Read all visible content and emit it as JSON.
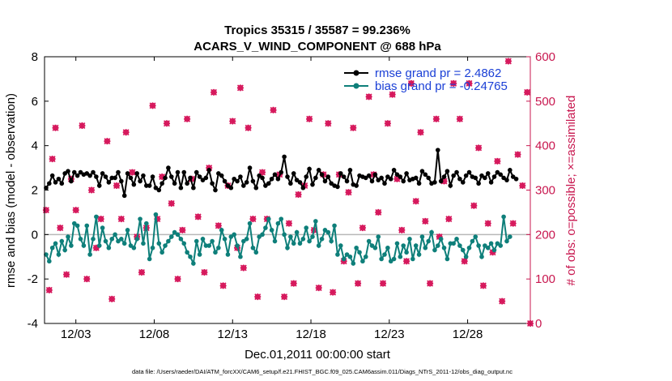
{
  "chart_data": {
    "type": "line",
    "title": "Tropics 35315 / 35587 = 99.236%",
    "subtitle": "ACARS_V_WIND_COMPONENT @ 688 hPa",
    "xlabel": "Dec.01,2011 00:00:00 start",
    "ylabel_left": "rmse and bias (model - observation)",
    "ylabel_right": "# of obs: o=possible; ×=assimilated",
    "x_tick_labels": [
      "12/03",
      "12/08",
      "12/13",
      "12/18",
      "12/23",
      "12/28"
    ],
    "x_tick_days": [
      2,
      7,
      12,
      17,
      22,
      27
    ],
    "xlim_days": [
      0,
      31
    ],
    "ylim_left": [
      -4,
      8
    ],
    "y_ticks_left": [
      "8",
      "6",
      "4",
      "2",
      "0",
      "-2",
      "-4"
    ],
    "ylim_right": [
      0,
      600
    ],
    "y_ticks_right": [
      "600",
      "500",
      "400",
      "300",
      "200",
      "100",
      "0"
    ],
    "series": [
      {
        "name": "rmse",
        "legend": "rmse grand pr = 2.4862",
        "color": "#000000",
        "values": [
          2.1,
          2.3,
          2.65,
          2.35,
          2.5,
          2.3,
          2.75,
          2.85,
          2.4,
          2.8,
          2.65,
          2.8,
          2.7,
          2.75,
          2.65,
          2.8,
          2.6,
          2.2,
          2.75,
          2.6,
          2.35,
          2.55,
          2.55,
          2.8,
          2.4,
          1.75,
          2.75,
          2.55,
          2.25,
          2.75,
          2.4,
          2.65,
          2.2,
          2.2,
          2.6,
          2.1,
          2.0,
          2.3,
          2.55,
          3.0,
          2.6,
          2.3,
          2.8,
          2.1,
          2.8,
          2.3,
          2.55,
          2.1,
          2.8,
          2.6,
          2.45,
          2.55,
          2.9,
          2.3,
          2.0,
          2.75,
          2.65,
          2.4,
          2.2,
          2.1,
          2.5,
          2.4,
          2.6,
          2.2,
          2.35,
          3.0,
          2.4,
          2.1,
          2.65,
          2.55,
          2.2,
          2.3,
          2.5,
          2.7,
          2.5,
          2.8,
          3.5,
          2.6,
          2.3,
          2.75,
          2.45,
          2.35,
          2.1,
          2.6,
          2.95,
          2.25,
          2.55,
          2.9,
          2.7,
          2.4,
          2.6,
          2.3,
          2.2,
          2.15,
          2.75,
          2.6,
          2.4,
          2.9,
          2.25,
          2.2,
          2.65,
          2.6,
          2.55,
          2.65,
          2.4,
          2.7,
          2.45,
          2.55,
          2.3,
          2.6,
          2.5,
          2.9,
          2.7,
          2.6,
          2.4,
          2.75,
          2.45,
          2.5,
          2.55,
          2.3,
          2.85,
          2.7,
          2.55,
          2.3,
          2.35,
          3.8,
          2.4,
          2.6,
          2.85,
          2.2,
          2.65,
          2.8,
          2.5,
          2.35,
          2.65,
          2.8,
          2.6,
          2.55,
          2.3,
          2.65,
          2.55,
          2.75,
          2.35,
          2.6,
          2.8,
          2.7,
          2.55,
          2.45,
          2.9,
          2.6,
          2.5
        ],
        "x_step_days": 0.2
      },
      {
        "name": "bias",
        "legend": "bias grand pr = -0.24765",
        "color": "#0e7f7a",
        "values": [
          -0.9,
          -1.2,
          -0.6,
          -0.4,
          -0.9,
          -0.3,
          -0.7,
          -0.1,
          -0.5,
          0.5,
          0.4,
          -0.2,
          -0.5,
          0.4,
          -0.9,
          -0.2,
          0.8,
          -0.5,
          0.3,
          -0.3,
          -0.6,
          -0.2,
          0.0,
          -0.3,
          -0.2,
          -0.4,
          0.2,
          -0.5,
          -0.6,
          -0.2,
          0.7,
          -0.4,
          0.5,
          -1.1,
          -0.6,
          0.9,
          -0.4,
          -0.8,
          -0.5,
          -0.3,
          -0.1,
          0.1,
          0.0,
          -0.2,
          -0.4,
          -0.8,
          -1.0,
          -1.3,
          -0.3,
          -0.9,
          -0.2,
          -0.5,
          -0.5,
          -0.3,
          -0.8,
          -0.6,
          0.2,
          -0.2,
          -0.9,
          -0.1,
          0.0,
          -0.5,
          -1.0,
          -0.3,
          -0.2,
          0.5,
          -0.6,
          -0.8,
          -0.1,
          0.0,
          0.3,
          0.7,
          0.2,
          -0.3,
          0.5,
          0.7,
          0.0,
          -0.6,
          -0.1,
          -0.4,
          0.1,
          -0.4,
          -0.2,
          0.3,
          -0.3,
          -0.1,
          0.6,
          -0.5,
          -0.2,
          0.2,
          0.1,
          -0.3,
          0.4,
          -0.9,
          -0.5,
          -1.1,
          -0.9,
          -1.0,
          -1.3,
          -0.6,
          -0.8,
          -1.2,
          -1.0,
          -0.3,
          -0.5,
          -0.6,
          -0.1,
          -1.1,
          -0.9,
          -0.6,
          -1.2,
          -1.1,
          -0.4,
          -1.0,
          -0.5,
          -0.8,
          -0.2,
          -1.1,
          -0.5,
          -0.9,
          -0.1,
          -0.6,
          -0.3,
          0.1,
          -0.7,
          -0.5,
          -0.2,
          -0.6,
          -1.1,
          -0.4,
          -0.4,
          -0.2,
          -0.5,
          -0.7,
          -1.0,
          -0.6,
          -0.3,
          -0.1,
          -0.5,
          -1.0,
          -0.5,
          -0.6,
          -0.4,
          -0.7,
          -0.4,
          -0.5,
          0.8,
          -0.3,
          -0.1
        ],
        "x_step_days": 0.2
      }
    ],
    "obs_possible": {
      "name": "# of obs possible",
      "marker": "o",
      "color": "#d6185c",
      "points": [
        [
          0.1,
          255
        ],
        [
          0.3,
          75
        ],
        [
          0.5,
          370
        ],
        [
          0.7,
          440
        ],
        [
          1.0,
          215
        ],
        [
          1.4,
          110
        ],
        [
          1.7,
          325
        ],
        [
          2.0,
          255
        ],
        [
          2.4,
          445
        ],
        [
          2.7,
          100
        ],
        [
          3.0,
          300
        ],
        [
          3.3,
          170
        ],
        [
          3.6,
          235
        ],
        [
          4.0,
          410
        ],
        [
          4.3,
          55
        ],
        [
          4.6,
          310
        ],
        [
          4.9,
          235
        ],
        [
          5.2,
          430
        ],
        [
          5.6,
          340
        ],
        [
          5.9,
          195
        ],
        [
          6.2,
          115
        ],
        [
          6.5,
          215
        ],
        [
          6.9,
          490
        ],
        [
          7.2,
          235
        ],
        [
          7.5,
          330
        ],
        [
          7.8,
          450
        ],
        [
          8.1,
          270
        ],
        [
          8.5,
          100
        ],
        [
          8.8,
          210
        ],
        [
          9.1,
          460
        ],
        [
          9.4,
          325
        ],
        [
          9.8,
          240
        ],
        [
          10.2,
          115
        ],
        [
          10.5,
          350
        ],
        [
          10.8,
          520
        ],
        [
          11.1,
          220
        ],
        [
          11.4,
          85
        ],
        [
          11.7,
          310
        ],
        [
          12.0,
          455
        ],
        [
          12.3,
          170
        ],
        [
          12.5,
          530
        ],
        [
          12.7,
          125
        ],
        [
          13.0,
          440
        ],
        [
          13.3,
          235
        ],
        [
          13.6,
          60
        ],
        [
          13.9,
          340
        ],
        [
          14.2,
          235
        ],
        [
          14.6,
          480
        ],
        [
          15.0,
          335
        ],
        [
          15.3,
          60
        ],
        [
          15.6,
          225
        ],
        [
          15.9,
          90
        ],
        [
          16.2,
          290
        ],
        [
          16.6,
          310
        ],
        [
          16.9,
          460
        ],
        [
          17.2,
          210
        ],
        [
          17.5,
          80
        ],
        [
          17.8,
          335
        ],
        [
          18.1,
          450
        ],
        [
          18.4,
          70
        ],
        [
          18.8,
          335
        ],
        [
          19.1,
          140
        ],
        [
          19.4,
          295
        ],
        [
          19.7,
          440
        ],
        [
          20.0,
          90
        ],
        [
          20.3,
          215
        ],
        [
          20.7,
          510
        ],
        [
          21.0,
          335
        ],
        [
          21.3,
          250
        ],
        [
          21.6,
          90
        ],
        [
          21.9,
          450
        ],
        [
          22.2,
          515
        ],
        [
          22.5,
          325
        ],
        [
          22.8,
          210
        ],
        [
          23.1,
          140
        ],
        [
          23.4,
          540
        ],
        [
          23.7,
          275
        ],
        [
          24.0,
          430
        ],
        [
          24.3,
          230
        ],
        [
          24.6,
          90
        ],
        [
          25.0,
          460
        ],
        [
          25.2,
          195
        ],
        [
          25.5,
          320
        ],
        [
          25.8,
          235
        ],
        [
          26.1,
          540
        ],
        [
          26.5,
          460
        ],
        [
          26.8,
          140
        ],
        [
          27.1,
          540
        ],
        [
          27.4,
          265
        ],
        [
          27.7,
          395
        ],
        [
          28.0,
          85
        ],
        [
          28.3,
          225
        ],
        [
          28.6,
          160
        ],
        [
          28.9,
          365
        ],
        [
          29.2,
          50
        ],
        [
          29.6,
          590
        ],
        [
          29.9,
          225
        ],
        [
          30.2,
          380
        ],
        [
          30.5,
          310
        ],
        [
          30.8,
          520
        ],
        [
          31.0,
          0
        ]
      ]
    },
    "zero_line_color": "#b8b8b8",
    "footer": "data file: /Users/raeder/DAI/ATM_forcXX/CAM6_setup/f.e21.FHIST_BGC.f09_025.CAM6assim.011/Diags_NTrS_2011-12/obs_diag_output.nc"
  }
}
